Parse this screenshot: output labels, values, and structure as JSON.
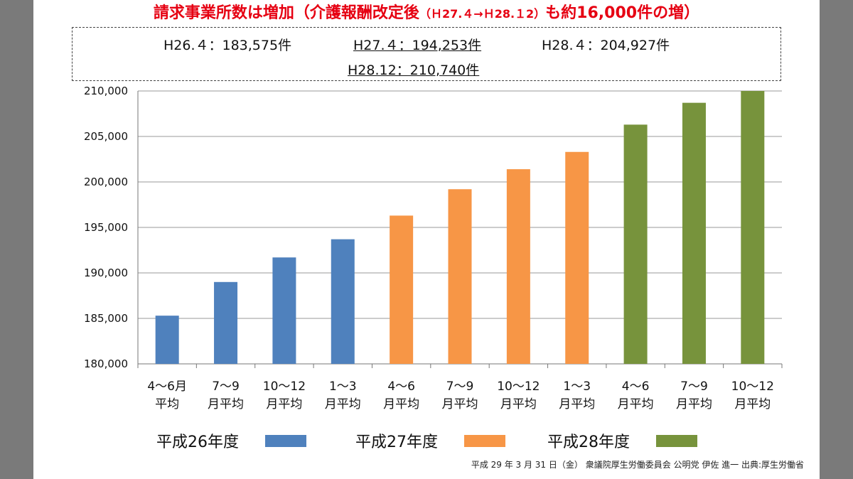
{
  "headline": {
    "main": "請求事業所数は増加（介護報酬改定後",
    "paren": "（Ｈ27.４→Ｈ28.１2）",
    "tail": "も約16,000件の増）"
  },
  "info_box": {
    "h26": "H26.４：183,575件",
    "h27": "H27.４：194,253件",
    "h28_4": "H28.４：204,927件",
    "h28_12": "H28.12：210,740件"
  },
  "chart_data": {
    "type": "bar",
    "ylim": [
      180000,
      210000
    ],
    "yticks": [
      180000,
      185000,
      190000,
      195000,
      200000,
      205000,
      210000
    ],
    "ytick_labels": [
      "180,000",
      "185,000",
      "190,000",
      "195,000",
      "200,000",
      "205,000",
      "210,000"
    ],
    "categories": [
      [
        "4～6月",
        "平均"
      ],
      [
        "7～9",
        "月平均"
      ],
      [
        "10～12",
        "月平均"
      ],
      [
        "1～3",
        "月平均"
      ],
      [
        "4～6",
        "月平均"
      ],
      [
        "7～9",
        "月平均"
      ],
      [
        "10～12",
        "月平均"
      ],
      [
        "1～3",
        "月平均"
      ],
      [
        "4～6",
        "月平均"
      ],
      [
        "7～9",
        "月平均"
      ],
      [
        "10～12",
        "月平均"
      ]
    ],
    "values": [
      185300,
      189000,
      191700,
      193700,
      196300,
      199200,
      201400,
      203300,
      206300,
      208700,
      210000
    ],
    "groups": [
      0,
      0,
      0,
      0,
      1,
      1,
      1,
      1,
      2,
      2,
      2
    ],
    "grid": true,
    "legend_position": "bottom",
    "legend": [
      {
        "name": "平成26年度",
        "color": "#4f81bd"
      },
      {
        "name": "平成27年度",
        "color": "#f79646"
      },
      {
        "name": "平成28年度",
        "color": "#77933c"
      }
    ]
  },
  "footer": "平成 29 年 3 月 31 日（金） 衆議院厚生労働委員会 公明党 伊佐 進一 出典:厚生労働省"
}
